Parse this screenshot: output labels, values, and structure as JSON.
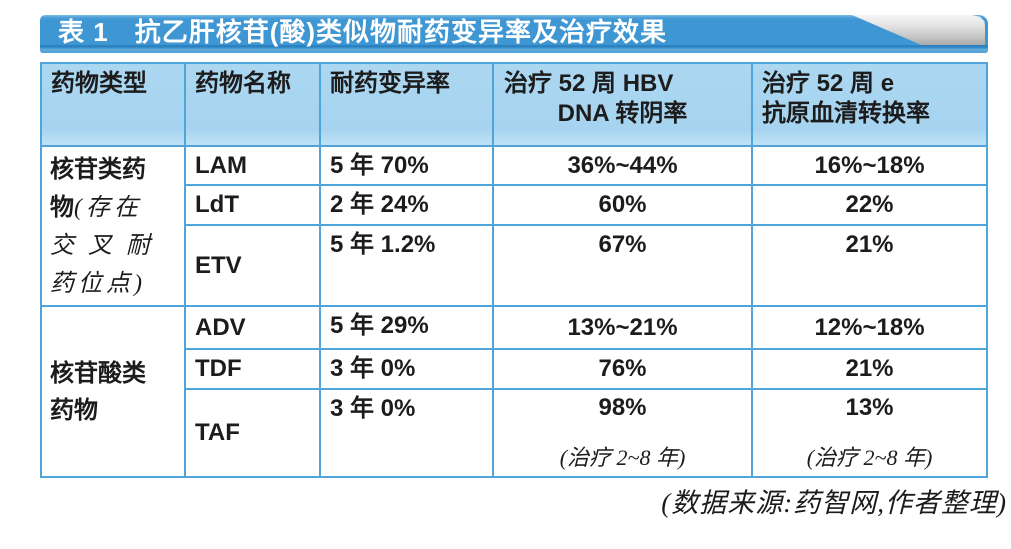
{
  "title_bar": {
    "label": "表 1",
    "title": "抗乙肝核苷(酸)类似物耐药变异率及治疗效果"
  },
  "header": {
    "drug_type": "药物类型",
    "drug_name": "药物名称",
    "resistance_rate": "耐药变异率",
    "hbv_dna_line1": "治疗 52 周 HBV",
    "hbv_dna_line2": "DNA 转阴率",
    "seroconversion": "治疗 52 周 e\n抗原血清转换率"
  },
  "groups": {
    "nucleoside": {
      "line1": "核苷类药",
      "line2_regular": "物",
      "line2_kai": "(存在",
      "line3": "交 叉 耐",
      "line4": "药位点)"
    },
    "nucleotide": {
      "label": "核苷酸类\n药物"
    }
  },
  "rows": [
    {
      "name": "LAM",
      "resistance": "5 年 70%",
      "hbv_dna": "36%~44%",
      "seroconversion": "16%~18%"
    },
    {
      "name": "LdT",
      "resistance": "2 年 24%",
      "hbv_dna": "60%",
      "seroconversion": "22%"
    },
    {
      "name": "ETV",
      "resistance": "5 年 1.2%",
      "hbv_dna": "67%",
      "seroconversion": "21%"
    },
    {
      "name": "ADV",
      "resistance": "5 年 29%",
      "hbv_dna": "13%~21%",
      "seroconversion": "12%~18%"
    },
    {
      "name": "TDF",
      "resistance": "3 年 0%",
      "hbv_dna": "76%",
      "seroconversion": "21%"
    },
    {
      "name": "TAF",
      "resistance": "3 年 0%",
      "hbv_dna": "98%",
      "hbv_dna_note": "(治疗 2~8 年)",
      "seroconversion": "13%",
      "seroconversion_note": "(治疗 2~8 年)"
    }
  ],
  "footer": {
    "source_note": "(数据来源:药智网,作者整理)"
  },
  "colors": {
    "banner_blue": "#3e96d3",
    "header_bg": "#a9d6f1",
    "border_blue": "#4fa4da",
    "swoosh_gray": "#c9c9c9",
    "text": "#1c1c1c"
  }
}
